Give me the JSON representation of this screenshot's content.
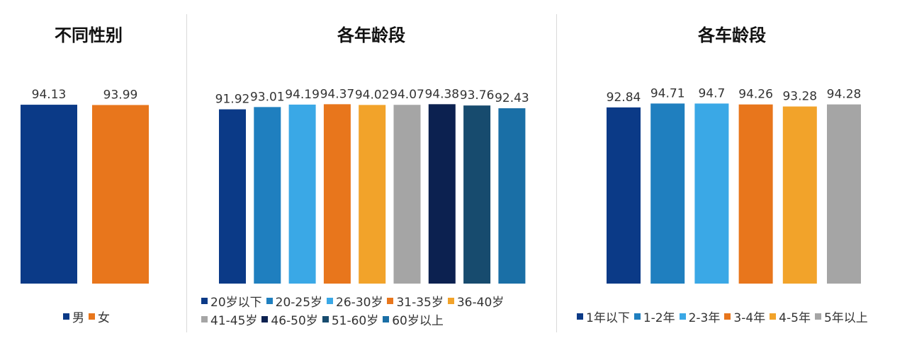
{
  "chart_data": [
    {
      "type": "bar",
      "title": "不同性别",
      "categories": [
        "男",
        "女"
      ],
      "values": [
        94.13,
        93.99
      ],
      "colors": [
        "#0b3a87",
        "#e8761c"
      ],
      "legend": [
        "男",
        "女"
      ],
      "legend_position": "bottom",
      "grid": false
    },
    {
      "type": "bar",
      "title": "各年龄段",
      "categories": [
        "20岁以下",
        "20-25岁",
        "26-30岁",
        "31-35岁",
        "36-40岁",
        "41-45岁",
        "46-50岁",
        "51-60岁",
        "60岁以上"
      ],
      "values": [
        91.92,
        93.01,
        94.19,
        94.37,
        94.02,
        94.07,
        94.38,
        93.76,
        92.43
      ],
      "colors": [
        "#0b3a87",
        "#1f7fbf",
        "#3aa8e6",
        "#e8761c",
        "#f2a32a",
        "#a5a5a5",
        "#0c2150",
        "#174b6e",
        "#1a6fa6"
      ],
      "legend": [
        "20岁以下",
        "20-25岁",
        "26-30岁",
        "31-35岁",
        "36-40岁",
        "41-45岁",
        "46-50岁",
        "51-60岁",
        "60岁以上"
      ],
      "legend_position": "bottom",
      "grid": false
    },
    {
      "type": "bar",
      "title": "各车龄段",
      "categories": [
        "1年以下",
        "1-2年",
        "2-3年",
        "3-4年",
        "4-5年",
        "5年以上"
      ],
      "values": [
        92.84,
        94.71,
        94.7,
        94.26,
        93.28,
        94.28
      ],
      "colors": [
        "#0b3a87",
        "#1f7fbf",
        "#3aa8e6",
        "#e8761c",
        "#f2a32a",
        "#a5a5a5"
      ],
      "legend": [
        "1年以下",
        "1-2年",
        "2-3年",
        "3-4年",
        "4-5年",
        "5年以上"
      ],
      "legend_position": "bottom",
      "grid": false
    }
  ]
}
